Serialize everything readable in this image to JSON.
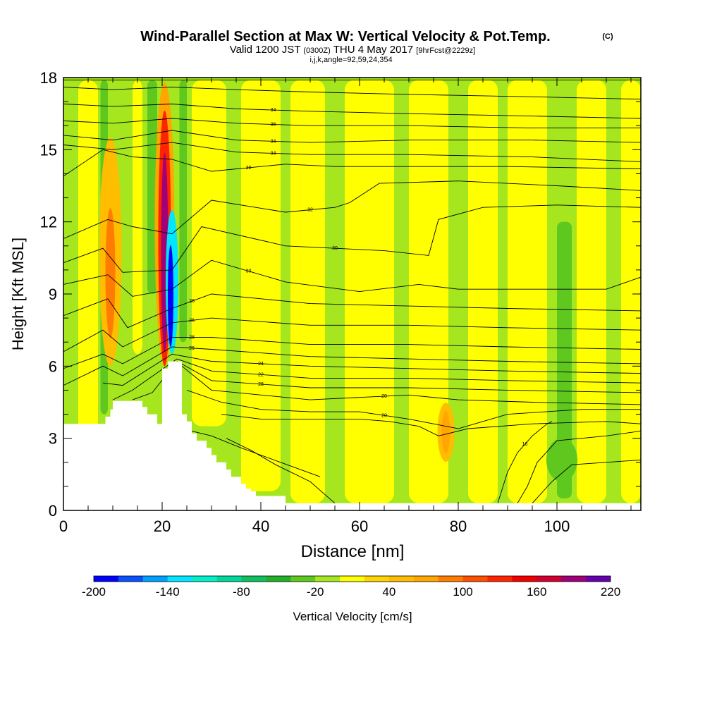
{
  "title": {
    "main": "Wind-Parallel Section at Max W: Vertical Velocity & Pot.Temp.",
    "copyright": "(C)",
    "valid_prefix": "Valid 1200 JST",
    "utc": "(0300Z)",
    "valid_date": "THU 4 May 2017",
    "forecast": "[9hrFcst@2229z]",
    "indices": "i,j,k,angle=92,59,24,354"
  },
  "chart_data": {
    "type": "heatmap",
    "subtype": "vertical cross-section with potential-temperature contours",
    "xlabel": "Distance [nm]",
    "ylabel": "Height [Kft MSL]",
    "xlim": [
      0,
      117
    ],
    "ylim": [
      0,
      18
    ],
    "x_ticks": [
      0,
      20,
      40,
      60,
      80,
      100
    ],
    "y_ticks": [
      0,
      3,
      6,
      9,
      12,
      15,
      18
    ],
    "colorbar": {
      "label": "Vertical Velocity [cm/s]",
      "tick_labels": [
        "-200",
        "-140",
        "-80",
        "-20",
        "40",
        "100",
        "160",
        "220"
      ],
      "min": -200,
      "max": 220,
      "step": 20,
      "colors": [
        "#0000ff",
        "#0a50ff",
        "#00a0ff",
        "#00e6ff",
        "#00f0c8",
        "#00d89a",
        "#10c060",
        "#22b02a",
        "#5ec81e",
        "#a6e61e",
        "#ffff00",
        "#ffd400",
        "#ffbd00",
        "#ffa600",
        "#ff7c00",
        "#ff5000",
        "#ff2400",
        "#f00000",
        "#d20030",
        "#a00078",
        "#6600aa"
      ]
    },
    "background_field": "weak updrafts/downdrafts between -20 and 20 cm/s across the section",
    "features": [
      {
        "name": "strong updraft",
        "x": 20.5,
        "y_range": [
          6,
          17.8
        ],
        "max_value": 180
      },
      {
        "name": "strong downdraft",
        "x": 22,
        "y_range": [
          6.5,
          12.5
        ],
        "min_value": -200
      },
      {
        "name": "upslope updraft",
        "x": 9.5,
        "y_range": [
          6,
          15.5
        ],
        "max_value": 80
      },
      {
        "name": "lee updraft",
        "x": 77.5,
        "y_range": [
          2.2,
          4.3
        ],
        "max_value": 60
      },
      {
        "name": "downdraft patch",
        "x": 101,
        "y_range": [
          1.2,
          3
        ],
        "min_value": -40
      }
    ],
    "terrain_profile": {
      "x": [
        0,
        8.5,
        8.5,
        9.5,
        9.5,
        10,
        10,
        16,
        16,
        17,
        17,
        19,
        19,
        20,
        20,
        21.2,
        21.2,
        22.5,
        22.5,
        24,
        24,
        25,
        25,
        26,
        26,
        27,
        27,
        29,
        29,
        30,
        30,
        31,
        31,
        33,
        33,
        34,
        34,
        36,
        36,
        37,
        37,
        38,
        38,
        39,
        39,
        45,
        45,
        46,
        46,
        50,
        50,
        51,
        51,
        117
      ],
      "y": [
        3.6,
        3.6,
        3.9,
        3.9,
        4.2,
        4.2,
        4.55,
        4.55,
        4.3,
        4.3,
        4.0,
        4.0,
        3.6,
        3.6,
        5.9,
        5.9,
        6.2,
        6.2,
        6.2,
        6.2,
        4.0,
        4.0,
        3.7,
        3.7,
        3.2,
        3.2,
        2.9,
        2.9,
        2.6,
        2.6,
        2.3,
        2.3,
        2.0,
        2.0,
        1.7,
        1.7,
        1.4,
        1.4,
        1.1,
        1.1,
        0.9,
        0.9,
        0.8,
        0.8,
        0.6,
        0.6,
        0.3,
        0.3,
        0.3,
        0.3,
        0.3,
        0.3,
        0.3,
        0.3
      ]
    },
    "contour_lines": [
      {
        "label": "",
        "x": [
          0,
          12,
          22,
          30,
          50,
          70,
          90,
          117
        ],
        "y": [
          17.9,
          17.9,
          17.9,
          17.9,
          17.9,
          17.9,
          17.9,
          17.9
        ]
      },
      {
        "label": "",
        "x": [
          0,
          10,
          22,
          35,
          50,
          70,
          95,
          117
        ],
        "y": [
          17.6,
          17.5,
          17.6,
          17.5,
          17.4,
          17.3,
          17.2,
          17.1
        ]
      },
      {
        "label": "34",
        "x": [
          0,
          10,
          22,
          35,
          50,
          70,
          95,
          117
        ],
        "y": [
          16.9,
          16.8,
          16.9,
          16.7,
          16.6,
          16.5,
          16.4,
          16.3
        ]
      },
      {
        "label": "36",
        "x": [
          0,
          10,
          22,
          35,
          50,
          70,
          95,
          117
        ],
        "y": [
          16.2,
          16.1,
          16.3,
          16.1,
          16.0,
          16.0,
          15.9,
          15.9
        ]
      },
      {
        "label": "34",
        "x": [
          0,
          10,
          22,
          35,
          50,
          70,
          95,
          117
        ],
        "y": [
          15.6,
          15.4,
          15.8,
          15.4,
          15.3,
          15.4,
          15.4,
          15.3
        ]
      },
      {
        "label": "34",
        "x": [
          0,
          10,
          22,
          35,
          50,
          70,
          95,
          117
        ],
        "y": [
          15.2,
          15.0,
          15.3,
          14.9,
          14.8,
          14.8,
          14.7,
          14.5
        ]
      },
      {
        "label": "30",
        "x": [
          0,
          8,
          14,
          22,
          30,
          45,
          55,
          70,
          90,
          117
        ],
        "y": [
          13.9,
          15.0,
          14.7,
          14.6,
          14.1,
          14.4,
          14.3,
          14.3,
          14.3,
          14.2
        ]
      },
      {
        "label": "32",
        "x": [
          0,
          9,
          14,
          22,
          30,
          45,
          55,
          58,
          64,
          80,
          100,
          117
        ],
        "y": [
          11.3,
          12.1,
          11.8,
          11.5,
          12.9,
          12.4,
          12.6,
          12.8,
          13.6,
          13.7,
          13.5,
          13.3
        ]
      },
      {
        "label": "30",
        "x": [
          0,
          8,
          12,
          22,
          28,
          45,
          65,
          74,
          76,
          85,
          100,
          117
        ],
        "y": [
          10.3,
          10.9,
          9.9,
          10.0,
          11.8,
          11.0,
          10.8,
          10.6,
          12.1,
          12.6,
          12.7,
          12.6
        ]
      },
      {
        "label": "30",
        "x": [
          0,
          9,
          14,
          22,
          30,
          45,
          60,
          72,
          80,
          110,
          117
        ],
        "y": [
          9.4,
          9.8,
          8.9,
          9.2,
          10.4,
          9.5,
          9.1,
          9.4,
          9.2,
          9.2,
          9.7
        ]
      },
      {
        "label": "26",
        "x": [
          0,
          9,
          13,
          22,
          30,
          50,
          70,
          90,
          117
        ],
        "y": [
          8.1,
          8.8,
          7.6,
          8.4,
          9.0,
          8.6,
          8.5,
          8.4,
          8.3
        ]
      },
      {
        "label": "26",
        "x": [
          0,
          8,
          12,
          22,
          30,
          50,
          70,
          90,
          117
        ],
        "y": [
          6.6,
          7.5,
          6.8,
          7.8,
          8.0,
          7.7,
          7.7,
          7.6,
          7.5
        ]
      },
      {
        "label": "28",
        "x": [
          0,
          8,
          12,
          22,
          30,
          50,
          70,
          90,
          117
        ],
        "y": [
          5.9,
          6.5,
          6.1,
          7.2,
          7.2,
          6.9,
          6.9,
          6.8,
          6.7
        ]
      },
      {
        "label": "26",
        "x": [
          0,
          8,
          12,
          22,
          30,
          50,
          70,
          90,
          117
        ],
        "y": [
          5.2,
          6.0,
          5.6,
          6.8,
          6.7,
          6.4,
          6.3,
          6.2,
          6.1
        ]
      },
      {
        "label": "24",
        "x": [
          8,
          12,
          22,
          30,
          50,
          70,
          90,
          117
        ],
        "y": [
          5.3,
          5.2,
          6.5,
          6.2,
          6.0,
          5.9,
          5.8,
          5.7
        ]
      },
      {
        "label": "22",
        "x": [
          10,
          14,
          23,
          30,
          50,
          70,
          90,
          117
        ],
        "y": [
          4.6,
          5.0,
          6.3,
          5.8,
          5.5,
          5.5,
          5.4,
          5.3
        ]
      },
      {
        "label": "28",
        "x": [
          14,
          18,
          23,
          30,
          50,
          70,
          90,
          117
        ],
        "y": [
          4.6,
          4.9,
          6.2,
          5.4,
          5.1,
          5.1,
          5.0,
          4.9
        ]
      },
      {
        "label": "20",
        "x": [
          24,
          30,
          50,
          60,
          70,
          80,
          95,
          117
        ],
        "y": [
          6.0,
          5.0,
          4.6,
          4.7,
          4.8,
          4.6,
          4.5,
          4.4
        ]
      },
      {
        "label": "20",
        "x": [
          25,
          32,
          40,
          50,
          60,
          70,
          75,
          80,
          90,
          105,
          117
        ],
        "y": [
          5.0,
          4.5,
          4.2,
          4.1,
          4.1,
          3.8,
          3.6,
          3.4,
          4.0,
          4.2,
          4.2
        ]
      },
      {
        "label": "",
        "x": [
          32,
          40,
          50,
          60,
          66,
          72,
          76,
          82,
          95,
          110,
          117
        ],
        "y": [
          4.0,
          3.8,
          3.8,
          3.8,
          3.7,
          3.5,
          3.1,
          3.4,
          3.6,
          3.7,
          3.6
        ]
      },
      {
        "label": "",
        "x": [
          26,
          30,
          36,
          44,
          52
        ],
        "y": [
          3.3,
          3.1,
          2.6,
          2.0,
          1.4
        ]
      },
      {
        "label": "",
        "x": [
          33,
          38,
          43,
          50,
          55
        ],
        "y": [
          3.0,
          2.5,
          1.9,
          1.2,
          0.3
        ]
      },
      {
        "label": "16",
        "x": [
          88,
          90,
          92,
          95,
          98,
          99
        ],
        "y": [
          0.3,
          1.6,
          2.4,
          3.1,
          3.6,
          3.7
        ]
      },
      {
        "label": "",
        "x": [
          92,
          94,
          96,
          100,
          110,
          117
        ],
        "y": [
          0.3,
          1.0,
          2.0,
          2.9,
          3.1,
          3.3
        ]
      },
      {
        "label": "",
        "x": [
          95,
          99,
          103,
          110,
          117
        ],
        "y": [
          0.3,
          1.2,
          1.9,
          2.0,
          2.1
        ]
      }
    ]
  }
}
